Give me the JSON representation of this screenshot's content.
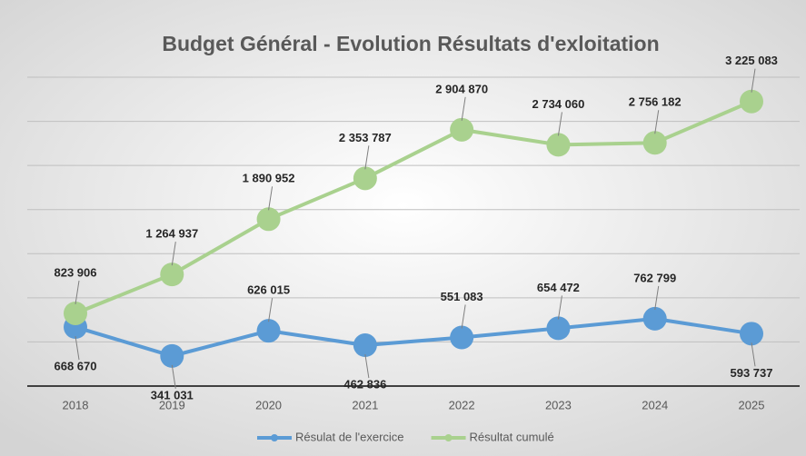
{
  "chart_data": {
    "type": "line",
    "title": "Budget Général - Evolution Résultats d'exloitation",
    "categories": [
      "2018",
      "2019",
      "2020",
      "2021",
      "2022",
      "2023",
      "2024",
      "2025"
    ],
    "series": [
      {
        "name": "Résulat de l'exercice",
        "color": "#5b9bd5",
        "values": [
          668670,
          341031,
          626015,
          462836,
          551083,
          654472,
          762799,
          593737
        ],
        "value_labels": [
          "668 670",
          "341 031",
          "626 015",
          "462 836",
          "551 083",
          "654 472",
          "762 799",
          "593 737"
        ]
      },
      {
        "name": "Résultat cumulé",
        "color": "#a9d18e",
        "values": [
          823906,
          1264937,
          1890952,
          2353787,
          2904870,
          2734060,
          2756182,
          3225083
        ],
        "value_labels": [
          "823 906",
          "1 264 937",
          "1 890 952",
          "2 353 787",
          "2 904 870",
          "2 734 060",
          "2 756 182",
          "3 225 083"
        ]
      }
    ],
    "ylim": [
      0,
      3500000
    ],
    "yticks": [
      0,
      500000,
      1000000,
      1500000,
      2000000,
      2500000,
      3000000,
      3500000
    ],
    "grid": true,
    "legend": "bottom"
  }
}
